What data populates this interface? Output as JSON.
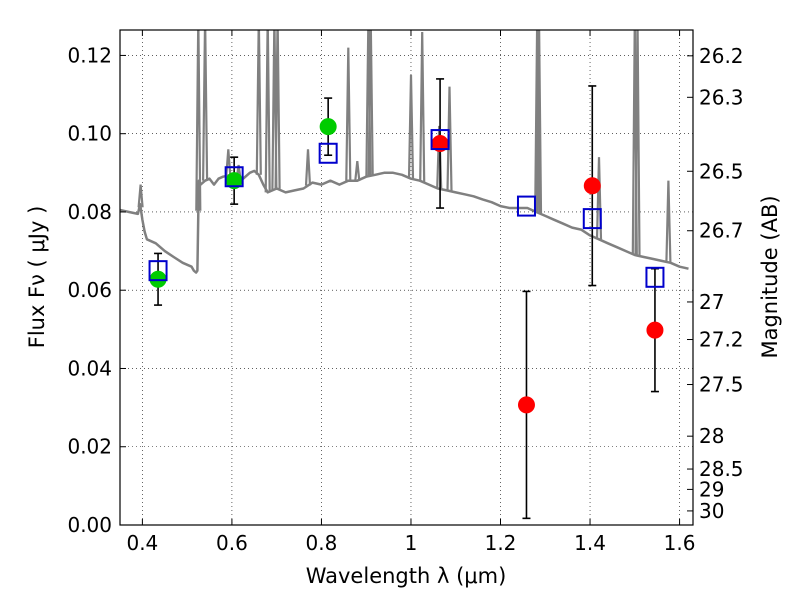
{
  "chart_data": {
    "type": "scatter",
    "title": "",
    "xlabel": "Wavelength  λ (μm)",
    "ylabel": "Flux  Fν  ( μJy )",
    "ylabel_right": "Magnitude (AB)",
    "xlim": [
      0.35,
      1.63
    ],
    "ylim": [
      0.0,
      0.1265
    ],
    "grid": true,
    "x_ticks": [
      0.4,
      0.6,
      0.8,
      1.0,
      1.2,
      1.4,
      1.6
    ],
    "x_tick_labels": [
      "0.4",
      "0.6",
      "0.8",
      "1",
      "1.2",
      "1.4",
      "1.6"
    ],
    "y_ticks": [
      0.0,
      0.02,
      0.04,
      0.06,
      0.08,
      0.1,
      0.12
    ],
    "y_tick_labels": [
      "0.00",
      "0.02",
      "0.04",
      "0.06",
      "0.08",
      "0.10",
      "0.12"
    ],
    "right_axis_ticks": [
      {
        "label": "26.2",
        "flux": 0.1199
      },
      {
        "label": "26.3",
        "flux": 0.1093
      },
      {
        "label": "26.5",
        "flux": 0.0904
      },
      {
        "label": "26.7",
        "flux": 0.0752
      },
      {
        "label": "27",
        "flux": 0.057
      },
      {
        "label": "27.2",
        "flux": 0.0474
      },
      {
        "label": "27.5",
        "flux": 0.0359
      },
      {
        "label": "28",
        "flux": 0.0227
      },
      {
        "label": "28.5",
        "flux": 0.0143
      },
      {
        "label": "29",
        "flux": 0.0091
      },
      {
        "label": "30",
        "flux": 0.0036
      }
    ],
    "series": [
      {
        "color": "#808080",
        "style": "line",
        "x": [
          0.35,
          0.37,
          0.39,
          0.395,
          0.4,
          0.405,
          0.41,
          0.43,
          0.45,
          0.47,
          0.49,
          0.51,
          0.515,
          0.52,
          0.523,
          0.526,
          0.53,
          0.54,
          0.55,
          0.56,
          0.57,
          0.58,
          0.6,
          0.62,
          0.64,
          0.65,
          0.66,
          0.67,
          0.68,
          0.7,
          0.72,
          0.74,
          0.76,
          0.78,
          0.8,
          0.82,
          0.84,
          0.86,
          0.88,
          0.9,
          0.92,
          0.94,
          0.96,
          0.98,
          1.0,
          1.02,
          1.04,
          1.06,
          1.08,
          1.1,
          1.12,
          1.14,
          1.16,
          1.18,
          1.2,
          1.22,
          1.24,
          1.26,
          1.28,
          1.3,
          1.32,
          1.34,
          1.36,
          1.38,
          1.4,
          1.42,
          1.44,
          1.46,
          1.48,
          1.5,
          1.52,
          1.54,
          1.56,
          1.58,
          1.6,
          1.62
        ],
        "y": [
          0.0805,
          0.08,
          0.0795,
          0.082,
          0.078,
          0.075,
          0.073,
          0.072,
          0.07,
          0.0685,
          0.067,
          0.066,
          0.065,
          0.0645,
          0.065,
          0.088,
          0.087,
          0.088,
          0.0885,
          0.087,
          0.0885,
          0.089,
          0.0895,
          0.088,
          0.09,
          0.0905,
          0.0895,
          0.087,
          0.085,
          0.086,
          0.085,
          0.0855,
          0.086,
          0.0875,
          0.087,
          0.088,
          0.087,
          0.088,
          0.088,
          0.089,
          0.0895,
          0.09,
          0.09,
          0.0895,
          0.0885,
          0.088,
          0.087,
          0.086,
          0.0855,
          0.085,
          0.0845,
          0.084,
          0.0832,
          0.0825,
          0.0815,
          0.081,
          0.081,
          0.081,
          0.08,
          0.079,
          0.078,
          0.077,
          0.076,
          0.0755,
          0.074,
          0.073,
          0.072,
          0.071,
          0.07,
          0.069,
          0.0685,
          0.068,
          0.0675,
          0.067,
          0.066,
          0.0655
        ]
      },
      {
        "color": "#808080",
        "style": "emission-lines",
        "lines": [
          {
            "x": 0.396,
            "y": 0.087
          },
          {
            "x": 0.525,
            "y": 0.13
          },
          {
            "x": 0.54,
            "y": 0.13
          },
          {
            "x": 0.592,
            "y": 0.096
          },
          {
            "x": 0.615,
            "y": 0.092
          },
          {
            "x": 0.66,
            "y": 0.13
          },
          {
            "x": 0.68,
            "y": 0.13
          },
          {
            "x": 0.695,
            "y": 0.13
          },
          {
            "x": 0.702,
            "y": 0.13
          },
          {
            "x": 0.77,
            "y": 0.096
          },
          {
            "x": 0.86,
            "y": 0.122
          },
          {
            "x": 0.88,
            "y": 0.093
          },
          {
            "x": 0.905,
            "y": 0.13
          },
          {
            "x": 0.91,
            "y": 0.13
          },
          {
            "x": 1.0,
            "y": 0.115
          },
          {
            "x": 1.025,
            "y": 0.126
          },
          {
            "x": 1.063,
            "y": 0.102
          },
          {
            "x": 1.086,
            "y": 0.112
          },
          {
            "x": 1.282,
            "y": 0.13
          },
          {
            "x": 1.286,
            "y": 0.13
          },
          {
            "x": 1.42,
            "y": 0.094
          },
          {
            "x": 1.5,
            "y": 0.13
          },
          {
            "x": 1.506,
            "y": 0.13
          },
          {
            "x": 1.575,
            "y": 0.088
          }
        ]
      },
      {
        "color": "#00cc00",
        "style": "circle",
        "x": [
          0.435,
          0.605,
          0.815
        ],
        "y": [
          0.0628,
          0.088,
          0.1018
        ],
        "yerr": [
          0.0066,
          0.006,
          0.0073
        ]
      },
      {
        "color": "#ff0000",
        "style": "circle",
        "x": [
          1.065,
          1.258,
          1.405,
          1.545
        ],
        "y": [
          0.0975,
          0.0307,
          0.0867,
          0.0498
        ],
        "yerr": [
          0.0165,
          0.029,
          0.0255,
          0.0157
        ]
      },
      {
        "color": "#0000cc",
        "style": "open-square",
        "x": [
          0.435,
          0.605,
          0.815,
          1.065,
          1.258,
          1.405,
          1.545
        ],
        "y": [
          0.065,
          0.089,
          0.095,
          0.0985,
          0.0815,
          0.0783,
          0.0633
        ]
      }
    ]
  }
}
